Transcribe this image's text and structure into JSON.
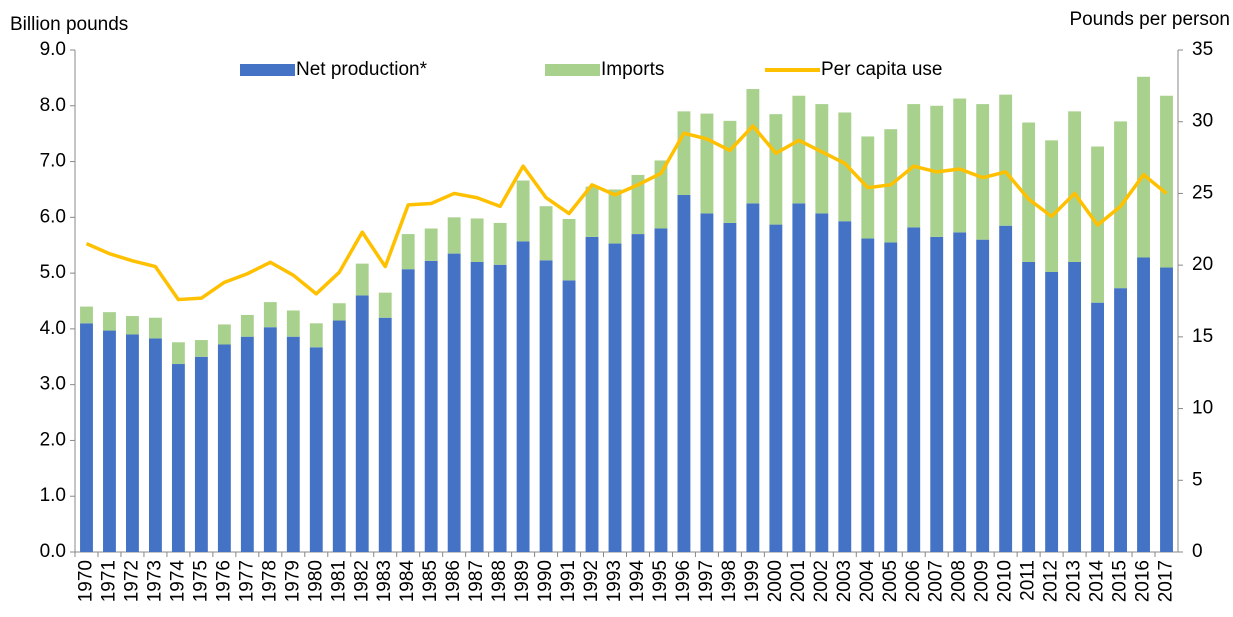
{
  "chart_data": {
    "type": "bar",
    "stacked": true,
    "y_label": "Billion pounds",
    "y2_label": "Pounds per person",
    "categories": [
      "1970",
      "1971",
      "1972",
      "1973",
      "1974",
      "1975",
      "1976",
      "1977",
      "1978",
      "1979",
      "1980",
      "1981",
      "1982",
      "1983",
      "1984",
      "1985",
      "1986",
      "1987",
      "1988",
      "1989",
      "1990",
      "1991",
      "1992",
      "1993",
      "1994",
      "1995",
      "1996",
      "1997",
      "1998",
      "1999",
      "2000",
      "2001",
      "2002",
      "2003",
      "2004",
      "2005",
      "2006",
      "2007",
      "2008",
      "2009",
      "2010",
      "2011",
      "2012",
      "2013",
      "2014",
      "2015",
      "2016",
      "2017"
    ],
    "series": [
      {
        "name": "Net production*",
        "type": "bar",
        "color": "#4472c4",
        "values": [
          4.1,
          3.97,
          3.9,
          3.83,
          3.37,
          3.5,
          3.72,
          3.86,
          4.03,
          3.86,
          3.67,
          4.15,
          4.6,
          4.2,
          5.07,
          5.22,
          5.35,
          5.2,
          5.15,
          5.57,
          5.23,
          4.87,
          5.65,
          5.53,
          5.7,
          5.8,
          6.4,
          6.07,
          5.9,
          6.25,
          5.87,
          6.25,
          6.07,
          5.93,
          5.62,
          5.55,
          5.82,
          5.65,
          5.73,
          5.6,
          5.85,
          5.2,
          5.02,
          5.2,
          4.47,
          4.73,
          5.28,
          5.1
        ]
      },
      {
        "name": "Imports",
        "type": "bar",
        "color": "#a9d18e",
        "values": [
          0.3,
          0.33,
          0.33,
          0.37,
          0.39,
          0.3,
          0.36,
          0.39,
          0.45,
          0.47,
          0.43,
          0.31,
          0.57,
          0.45,
          0.63,
          0.58,
          0.65,
          0.78,
          0.75,
          1.09,
          0.97,
          1.1,
          0.9,
          0.97,
          1.06,
          1.22,
          1.5,
          1.79,
          1.83,
          2.05,
          1.98,
          1.93,
          1.96,
          1.95,
          1.83,
          2.03,
          2.21,
          2.35,
          2.4,
          2.43,
          2.35,
          2.5,
          2.36,
          2.7,
          2.8,
          2.99,
          3.24,
          3.08
        ]
      },
      {
        "name": "Per capita use",
        "type": "line",
        "axis": "y2",
        "color": "#ffc000",
        "values": [
          21.5,
          20.8,
          20.3,
          19.9,
          17.6,
          17.7,
          18.8,
          19.4,
          20.2,
          19.3,
          18.0,
          19.5,
          22.3,
          19.9,
          24.2,
          24.3,
          25.0,
          24.7,
          24.1,
          26.9,
          24.7,
          23.6,
          25.6,
          24.9,
          25.6,
          26.4,
          29.2,
          28.8,
          28.0,
          29.7,
          27.8,
          28.7,
          27.9,
          27.1,
          25.4,
          25.6,
          26.9,
          26.5,
          26.7,
          26.1,
          26.5,
          24.6,
          23.4,
          25.0,
          22.8,
          24.1,
          26.3,
          25.0
        ]
      }
    ],
    "ylim": [
      0,
      9
    ],
    "yticks": [
      {
        "value": 0,
        "label": "0.0"
      },
      {
        "value": 1,
        "label": "1.0"
      },
      {
        "value": 2,
        "label": "2.0"
      },
      {
        "value": 3,
        "label": "3.0"
      },
      {
        "value": 4,
        "label": "4.0"
      },
      {
        "value": 5,
        "label": "5.0"
      },
      {
        "value": 6,
        "label": "6.0"
      },
      {
        "value": 7,
        "label": "7.0"
      },
      {
        "value": 8,
        "label": "8.0"
      },
      {
        "value": 9,
        "label": "9.0"
      }
    ],
    "y2lim": [
      0,
      35
    ],
    "y2ticks": [
      0,
      5,
      10,
      15,
      20,
      25,
      30,
      35
    ],
    "grid": false,
    "legend": "top"
  }
}
